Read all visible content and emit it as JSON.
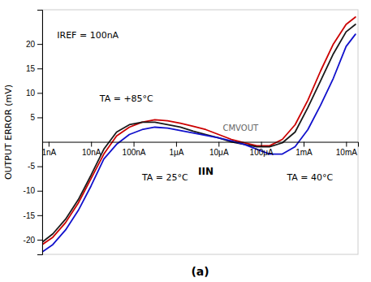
{
  "chart_data": {
    "type": "line",
    "title": "(a)",
    "y_label": "OUTPUT ERROR (mV)",
    "log": "x",
    "grid": false,
    "x": [
      7.0794578e-10,
      1.2589254e-09,
      2.5118864e-09,
      5.0118723e-09,
      1e-08,
      1.9952623e-08,
      3.9810717e-08,
      7.9432823e-08,
      1.5848932e-07,
      3.1622777e-07,
      6.3095734e-07,
      1.2589254e-06,
      2.5118864e-06,
      5.0118723e-06,
      1e-05,
      1.9952623e-05,
      3.9810717e-05,
      7.9432823e-05,
      0.00015848932,
      0.00031622777,
      0.00063095734,
      0.0012589254,
      0.0025118864,
      0.0050118723,
      0.01,
      0.016595869
    ],
    "series": [
      {
        "color": "#cc0000",
        "values": [
          -21.0,
          -19.5,
          -16.5,
          -12.5,
          -7.5,
          -2.5,
          1.2,
          3.0,
          4.0,
          4.5,
          4.3,
          3.8,
          3.2,
          2.5,
          1.5,
          0.5,
          -0.2,
          -0.8,
          -0.8,
          0.5,
          3.5,
          8.5,
          14.5,
          20.0,
          24.0,
          25.5
        ]
      },
      {
        "color": "#1a1a1a",
        "values": [
          -20.5,
          -18.8,
          -15.8,
          -11.8,
          -6.8,
          -1.5,
          2.0,
          3.5,
          4.0,
          4.0,
          3.5,
          3.0,
          2.2,
          1.5,
          0.8,
          0.0,
          -0.5,
          -1.0,
          -1.0,
          -0.2,
          2.0,
          7.0,
          12.5,
          18.0,
          22.5,
          24.0
        ]
      },
      {
        "color": "#1111cc",
        "values": [
          -22.5,
          -21.0,
          -18.0,
          -14.0,
          -9.0,
          -3.5,
          -0.5,
          1.5,
          2.5,
          3.0,
          2.8,
          2.3,
          1.8,
          1.3,
          0.8,
          0.2,
          -0.5,
          -1.5,
          -2.5,
          -2.5,
          -1.0,
          2.5,
          7.5,
          13.0,
          19.5,
          22.0
        ]
      }
    ],
    "xlim": [
      7.0794578e-10,
      0.019054607
    ],
    "xticks": [
      {
        "value": 1e-09,
        "label": "1nA"
      },
      {
        "value": 1e-08,
        "label": "10nA"
      },
      {
        "value": 1e-07,
        "label": "100nA"
      },
      {
        "value": 1e-06,
        "label": "1μA"
      },
      {
        "value": 1e-05,
        "label": "10μA"
      },
      {
        "value": 0.0001,
        "label": "100μA"
      },
      {
        "value": 0.001,
        "label": "1mA"
      },
      {
        "value": 0.01,
        "label": "10mA"
      }
    ],
    "ylim": [
      -23,
      27
    ],
    "yticks": [
      -20,
      -15,
      -10,
      -5,
      5,
      10,
      15,
      20
    ],
    "annotations": [
      "IREF = 100nA",
      "TA = +85°C",
      "TA = 25°C",
      "IIN",
      "TA = 40°C",
      "CMVOUT"
    ]
  }
}
